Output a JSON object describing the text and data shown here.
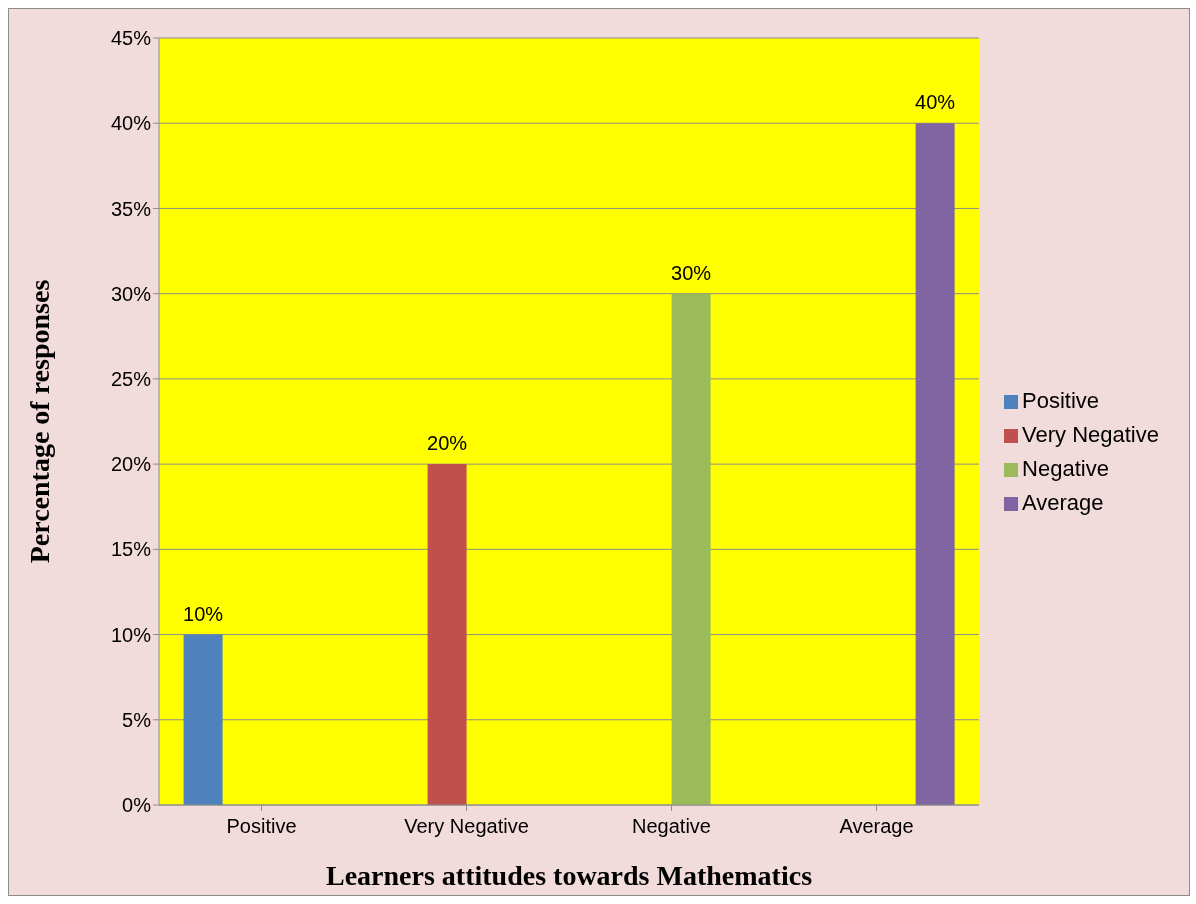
{
  "chart_data": {
    "type": "bar",
    "xlabel": "Learners attitudes towards Mathematics",
    "ylabel": "Percentage of responses",
    "categories": [
      "Positive",
      "Very Negative",
      "Negative",
      "Average"
    ],
    "series": [
      {
        "name": "Positive",
        "color": "#4f81bd",
        "values": [
          10,
          null,
          null,
          null
        ],
        "value_labels": [
          "10%",
          null,
          null,
          null
        ]
      },
      {
        "name": "Very Negative",
        "color": "#c0504d",
        "values": [
          null,
          20,
          null,
          null
        ],
        "value_labels": [
          null,
          "20%",
          null,
          null
        ]
      },
      {
        "name": "Negative",
        "color": "#9bbb59",
        "values": [
          null,
          null,
          30,
          null
        ],
        "value_labels": [
          null,
          null,
          "30%",
          null
        ]
      },
      {
        "name": "Average",
        "color": "#8064a2",
        "values": [
          null,
          null,
          null,
          40
        ],
        "value_labels": [
          null,
          null,
          null,
          "40%"
        ]
      }
    ],
    "ylim": [
      0,
      45
    ],
    "yticks": [
      {
        "value": 0,
        "label": "0%"
      },
      {
        "value": 5,
        "label": "5%"
      },
      {
        "value": 10,
        "label": "10%"
      },
      {
        "value": 15,
        "label": "15%"
      },
      {
        "value": 20,
        "label": "20%"
      },
      {
        "value": 25,
        "label": "25%"
      },
      {
        "value": 30,
        "label": "30%"
      },
      {
        "value": 35,
        "label": "35%"
      },
      {
        "value": 40,
        "label": "40%"
      },
      {
        "value": 45,
        "label": "45%"
      }
    ],
    "grid": "y",
    "legend": "right"
  }
}
